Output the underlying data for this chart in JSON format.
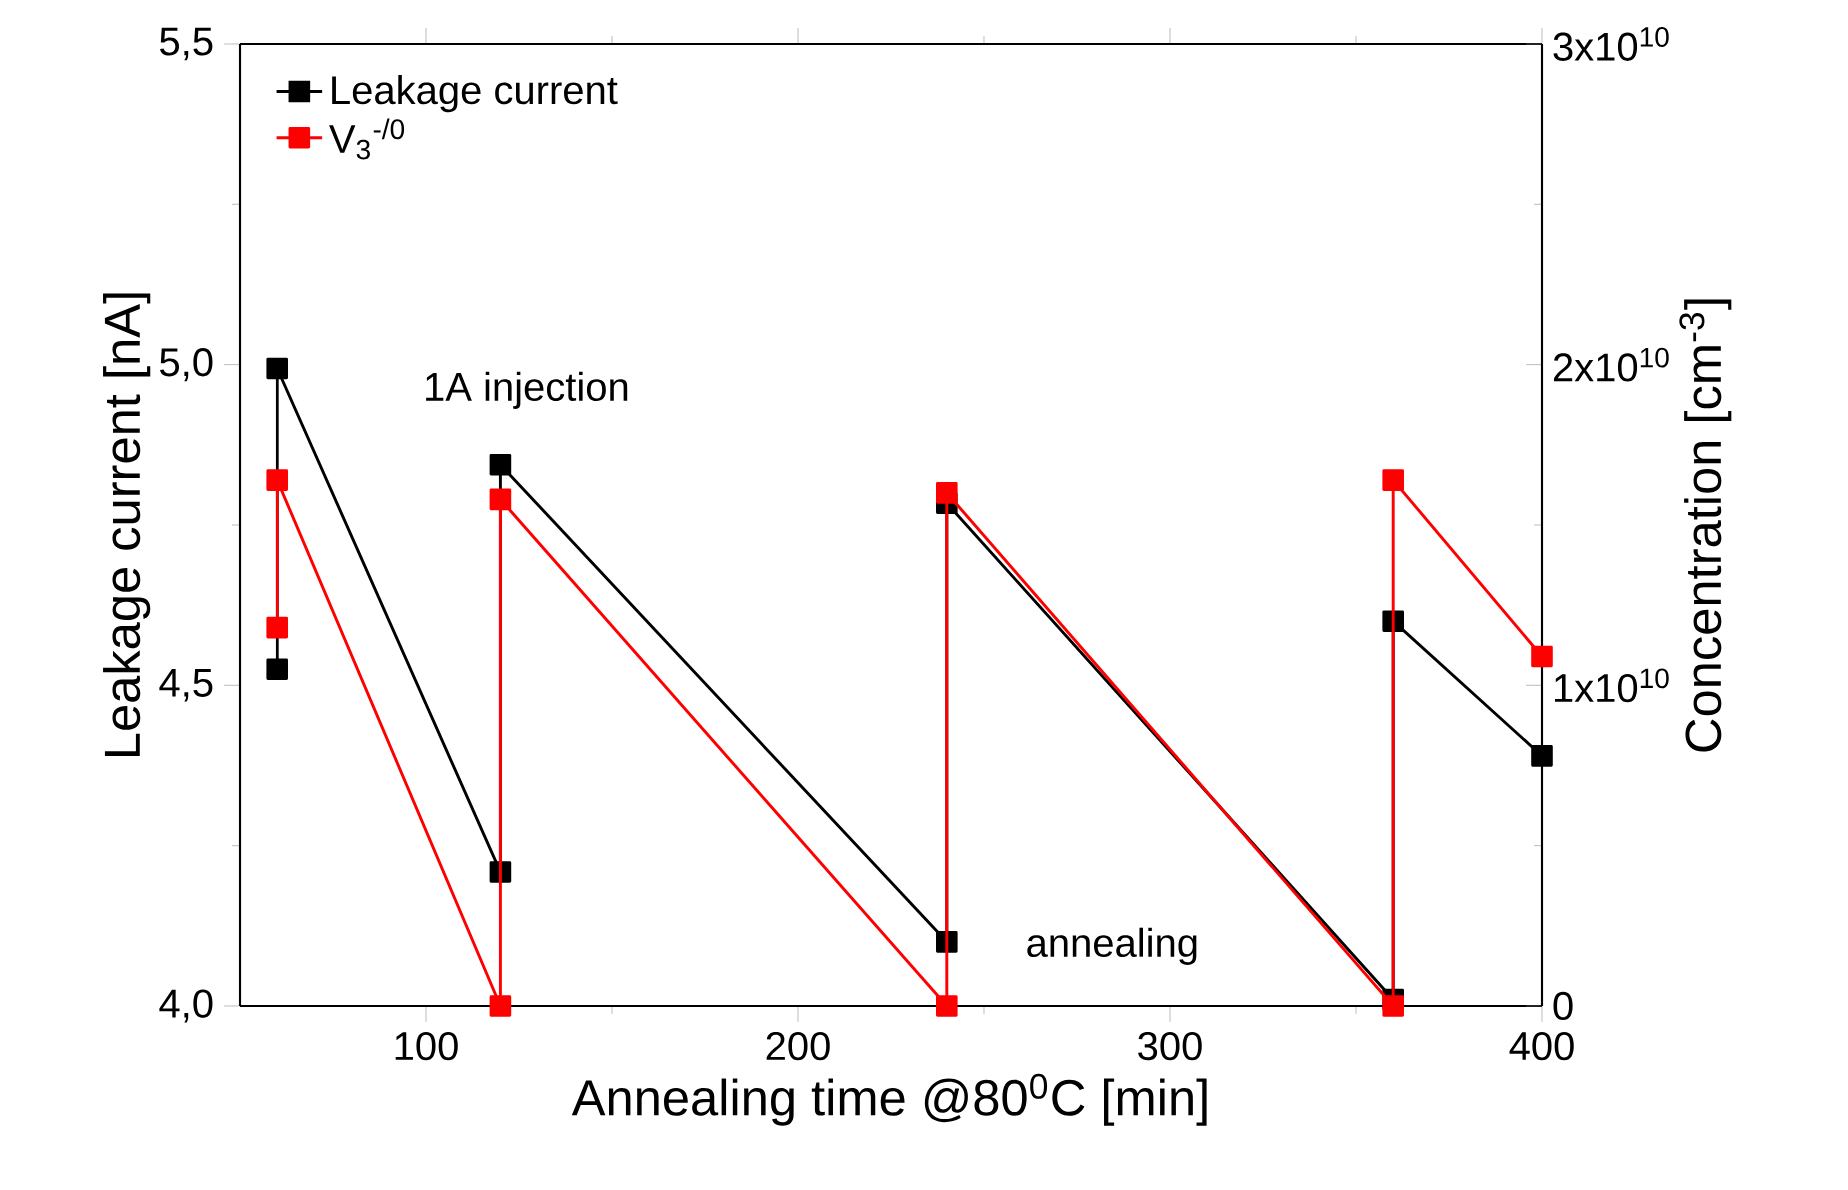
{
  "chart_data": {
    "type": "line",
    "xlabel": "Annealing time @80$^{0}$C [min]",
    "ylabel": "Leakage current [nA]",
    "y2label": "Concentration [cm$^{-3}$]",
    "xlim": [
      50,
      400
    ],
    "xticks": [
      100,
      200,
      300,
      400
    ],
    "ylim": [
      4.0,
      5.5
    ],
    "yticks": [
      {
        "value": 4.0,
        "label": "4,0"
      },
      {
        "value": 4.5,
        "label": "4,5"
      },
      {
        "value": 5.0,
        "label": "5,0"
      },
      {
        "value": 5.5,
        "label": "5,5"
      }
    ],
    "y2lim": [
      0,
      30000000000.0
    ],
    "y2ticks": [
      0,
      {
        "value": 10000000000.0,
        "label": "1x10$^{10}$"
      },
      {
        "value": 20000000000.0,
        "label": "2x10$^{10}$"
      },
      {
        "value": 30000000000.0,
        "label": "3x10$^{10}$"
      }
    ],
    "series": [
      {
        "name": "Leakage current",
        "color": "#000000",
        "x": [
          60,
          60,
          120,
          120,
          240,
          240,
          360,
          360,
          400
        ],
        "values": [
          4.525,
          4.994,
          4.209,
          4.844,
          4.1,
          4.784,
          4.01,
          4.6,
          4.39
        ]
      },
      {
        "name": "V$_{3}$$^{-/0}$",
        "color": "#ff0000",
        "axis": "y2",
        "x": [
          60,
          60,
          120,
          120,
          240,
          240,
          360,
          360,
          400
        ],
        "values": [
          11800000000.0,
          16400000000.0,
          0,
          15800000000.0,
          0,
          16000000000.0,
          0,
          16400000000.0,
          10900000000.0
        ]
      }
    ],
    "annotations": [
      "1A injection",
      "annealing"
    ],
    "marker": "square",
    "line_style": "solid",
    "legend": "top left",
    "grid": false
  }
}
